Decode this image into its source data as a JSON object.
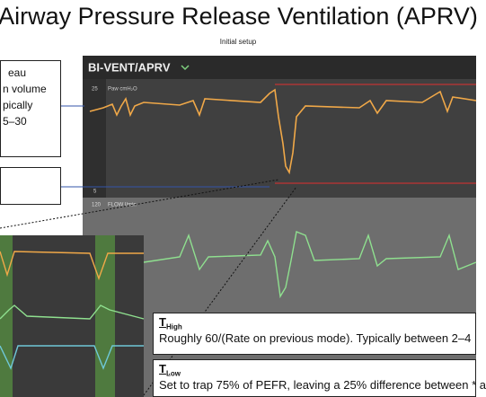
{
  "header": {
    "title": "Airway Pressure Release Ventilation (APRV)",
    "subtitle": "Initial setup"
  },
  "left_box": {
    "lines": [
      "eau",
      "n volume",
      "pically",
      "5–30"
    ]
  },
  "screen": {
    "mode": "BI-VENT/APRV",
    "pressure_panel": {
      "scale_top": "25",
      "label": "Paw cmH₂O",
      "scale_bottom": "5"
    },
    "flow_panel": {
      "scale_top": "120",
      "label": "FLOW l/min"
    }
  },
  "notes": [
    {
      "symbol": "T",
      "subscript": "High",
      "text": "Roughly 60/(Rate on previous mode).  Typically between 2–4"
    },
    {
      "symbol": "T",
      "subscript": "Low",
      "text": "Set to trap 75% of PEFR, leaving a 25% difference between * a"
    }
  ]
}
